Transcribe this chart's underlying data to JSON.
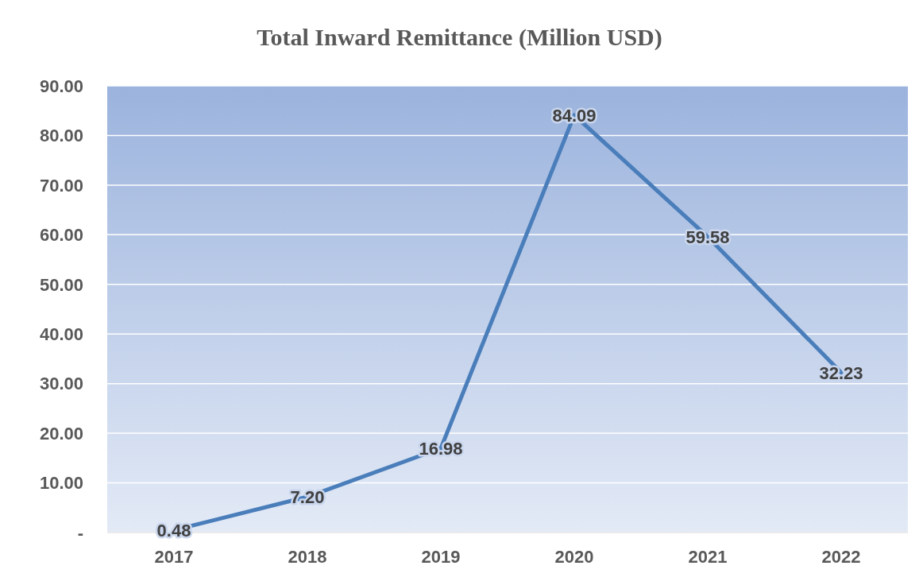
{
  "chart_data": {
    "type": "line",
    "title": "Total Inward Remittance (Million USD)",
    "categories": [
      "2017",
      "2018",
      "2019",
      "2020",
      "2021",
      "2022"
    ],
    "series": [
      {
        "color": "#4a7ebb",
        "values": [
          0.48,
          7.2,
          16.98,
          84.09,
          59.58,
          32.23
        ],
        "value_labels": [
          "0.48",
          "7.20",
          "16.98",
          "84.09",
          "59.58",
          "32.23"
        ]
      }
    ],
    "ylim": [
      0,
      90
    ],
    "yticks": [
      {
        "value": 0,
        "label": "-"
      },
      {
        "value": 10,
        "label": "10.00"
      },
      {
        "value": 20,
        "label": "20.00"
      },
      {
        "value": 30,
        "label": "30.00"
      },
      {
        "value": 40,
        "label": "40.00"
      },
      {
        "value": 50,
        "label": "50.00"
      },
      {
        "value": 60,
        "label": "60.00"
      },
      {
        "value": 70,
        "label": "70.00"
      },
      {
        "value": 80,
        "label": "80.00"
      },
      {
        "value": 90,
        "label": "90.00"
      }
    ],
    "grid": "y",
    "marker": "none",
    "line_style": "solid"
  }
}
